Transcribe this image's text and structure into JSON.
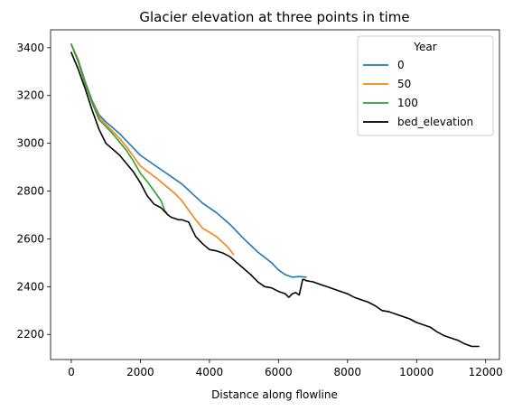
{
  "chart_data": {
    "type": "line",
    "title": "Glacier elevation at three points in time",
    "xlabel": "Distance along flowline",
    "ylabel": "",
    "xlim": [
      -600,
      12400
    ],
    "ylim": [
      2095,
      3475
    ],
    "xticks": [
      0,
      2000,
      4000,
      6000,
      8000,
      10000,
      12000
    ],
    "yticks": [
      2200,
      2400,
      2600,
      2800,
      3000,
      3200,
      3400
    ],
    "grid": false,
    "legend": {
      "title": "Year",
      "position": "top-right"
    },
    "series": [
      {
        "name": "0",
        "color": "#1f77b4",
        "x": [
          0,
          200,
          400,
          600,
          800,
          1000,
          1200,
          1400,
          1600,
          1800,
          2000,
          2500,
          3000,
          3200,
          3500,
          3800,
          4200,
          4600,
          5000,
          5400,
          5800,
          6000,
          6200,
          6400,
          6600,
          6800
        ],
        "y": [
          3415,
          3350,
          3260,
          3180,
          3120,
          3090,
          3065,
          3040,
          3010,
          2980,
          2950,
          2900,
          2850,
          2830,
          2790,
          2750,
          2710,
          2660,
          2600,
          2545,
          2500,
          2470,
          2450,
          2440,
          2442,
          2440
        ]
      },
      {
        "name": "50",
        "color": "#ff7f0e",
        "x": [
          0,
          200,
          400,
          600,
          800,
          1000,
          1200,
          1400,
          1600,
          1800,
          2000,
          2500,
          3000,
          3200,
          3400,
          3600,
          3800,
          4200,
          4500,
          4700
        ],
        "y": [
          3415,
          3345,
          3255,
          3175,
          3110,
          3080,
          3050,
          3020,
          2985,
          2945,
          2905,
          2850,
          2790,
          2760,
          2720,
          2680,
          2645,
          2610,
          2570,
          2535
        ]
      },
      {
        "name": "100",
        "color": "#2ca02c",
        "x": [
          0,
          200,
          400,
          600,
          800,
          1000,
          1200,
          1400,
          1600,
          1800,
          2000,
          2200,
          2400,
          2600,
          2700,
          2800
        ],
        "y": [
          3415,
          3340,
          3250,
          3170,
          3100,
          3070,
          3040,
          3005,
          2970,
          2925,
          2875,
          2840,
          2800,
          2760,
          2720,
          2700
        ]
      },
      {
        "name": "bed_elevation",
        "color": "#000000",
        "x": [
          0,
          200,
          400,
          600,
          800,
          1000,
          1200,
          1400,
          1600,
          1800,
          2000,
          2200,
          2400,
          2600,
          2800,
          2900,
          3000,
          3100,
          3200,
          3400,
          3500,
          3600,
          3800,
          4000,
          4200,
          4400,
          4600,
          4800,
          5000,
          5200,
          5400,
          5600,
          5800,
          6000,
          6200,
          6300,
          6400,
          6500,
          6600,
          6700,
          6750,
          6800,
          7000,
          7200,
          7400,
          7600,
          7800,
          8000,
          8200,
          8400,
          8600,
          8800,
          9000,
          9200,
          9400,
          9600,
          9800,
          10000,
          10200,
          10400,
          10600,
          10800,
          11000,
          11200,
          11400,
          11600,
          11800
        ],
        "y": [
          3380,
          3310,
          3230,
          3140,
          3060,
          3000,
          2975,
          2950,
          2915,
          2880,
          2835,
          2780,
          2745,
          2730,
          2700,
          2690,
          2685,
          2680,
          2680,
          2670,
          2640,
          2610,
          2580,
          2555,
          2550,
          2540,
          2525,
          2500,
          2475,
          2450,
          2420,
          2400,
          2395,
          2380,
          2370,
          2355,
          2370,
          2375,
          2365,
          2430,
          2430,
          2425,
          2420,
          2410,
          2400,
          2390,
          2380,
          2370,
          2355,
          2345,
          2335,
          2320,
          2300,
          2295,
          2285,
          2275,
          2265,
          2250,
          2240,
          2230,
          2210,
          2195,
          2185,
          2175,
          2160,
          2150,
          2150
        ]
      }
    ]
  }
}
